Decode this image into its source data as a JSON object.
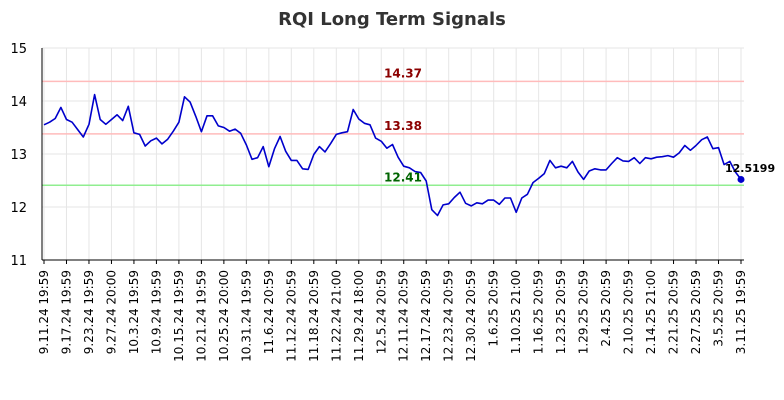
{
  "chart_data": {
    "type": "line",
    "title": "RQI Long Term Signals",
    "xlabel": "",
    "ylabel": "",
    "ylim": [
      11,
      15
    ],
    "yticks": [
      11,
      12,
      13,
      14,
      15
    ],
    "grid": true,
    "line_color": "#0000cc",
    "x_tick_labels": [
      "9.11.24 19:59",
      "9.17.24 19:59",
      "9.23.24 19:59",
      "9.27.24 20:00",
      "10.3.24 19:59",
      "10.9.24 19:59",
      "10.15.24 19:59",
      "10.21.24 19:59",
      "10.25.24 20:00",
      "10.31.24 19:59",
      "11.6.24 20:59",
      "11.12.24 20:59",
      "11.18.24 20:59",
      "11.22.24 21:00",
      "11.29.24 18:00",
      "12.5.24 20:59",
      "12.11.24 20:59",
      "12.17.24 20:59",
      "12.23.24 20:59",
      "12.30.24 20:59",
      "1.6.25 20:59",
      "1.10.25 21:00",
      "1.16.25 20:59",
      "1.23.25 20:59",
      "1.29.25 20:59",
      "2.4.25 20:59",
      "2.10.25 20:59",
      "2.14.25 21:00",
      "2.21.25 20:59",
      "2.27.25 20:59",
      "3.5.25 20:59",
      "3.11.25 19:59"
    ],
    "reference_lines": [
      {
        "label": "14.37",
        "value": 14.37,
        "color": "#ffbbbb",
        "label_color": "#8b0000"
      },
      {
        "label": "13.38",
        "value": 13.38,
        "color": "#ffbbbb",
        "label_color": "#8b0000"
      },
      {
        "label": "12.41",
        "value": 12.41,
        "color": "#90ee90",
        "label_color": "#006400"
      }
    ],
    "last_value_label": "12.5199",
    "series": [
      {
        "values": [
          13.55,
          13.6,
          13.67,
          13.88,
          13.65,
          13.6,
          13.46,
          13.32,
          13.56,
          14.12,
          13.65,
          13.56,
          13.65,
          13.74,
          13.63,
          13.9,
          13.4,
          13.37,
          13.15,
          13.25,
          13.3,
          13.19,
          13.28,
          13.43,
          13.6,
          14.08,
          13.98,
          13.71,
          13.42,
          13.72,
          13.72,
          13.53,
          13.5,
          13.43,
          13.47,
          13.39,
          13.17,
          12.9,
          12.93,
          13.14,
          12.76,
          13.1,
          13.33,
          13.05,
          12.88,
          12.88,
          12.72,
          12.71,
          12.99,
          13.14,
          13.04,
          13.2,
          13.37,
          13.4,
          13.42,
          13.84,
          13.66,
          13.58,
          13.55,
          13.3,
          13.24,
          13.11,
          13.18,
          12.94,
          12.77,
          12.74,
          12.67,
          12.65,
          12.49,
          11.95,
          11.84,
          12.04,
          12.06,
          12.18,
          12.28,
          12.07,
          12.02,
          12.08,
          12.06,
          12.13,
          12.13,
          12.05,
          12.17,
          12.17,
          11.9,
          12.17,
          12.24,
          12.46,
          12.54,
          12.63,
          12.88,
          12.74,
          12.77,
          12.74,
          12.86,
          12.66,
          12.52,
          12.68,
          12.72,
          12.7,
          12.7,
          12.82,
          12.93,
          12.87,
          12.86,
          12.93,
          12.82,
          12.93,
          12.91,
          12.94,
          12.95,
          12.97,
          12.94,
          13.02,
          13.16,
          13.07,
          13.16,
          13.27,
          13.32,
          13.1,
          13.12,
          12.8,
          12.86,
          12.66,
          12.52
        ]
      }
    ]
  }
}
